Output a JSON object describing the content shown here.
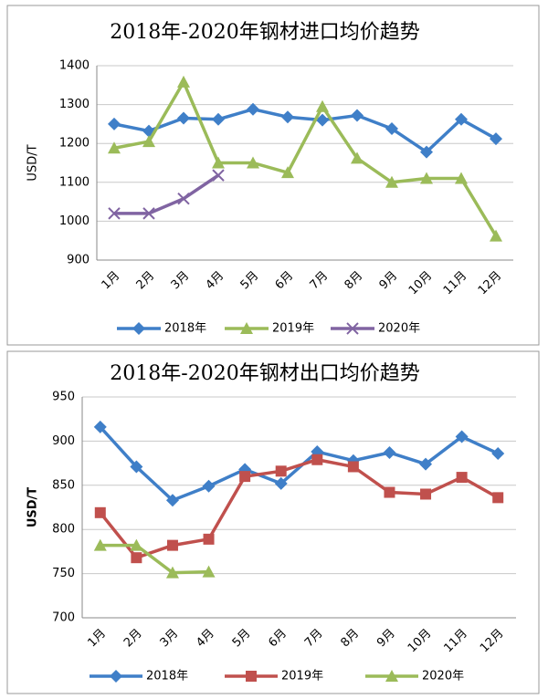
{
  "chart_data": [
    {
      "type": "line",
      "title": "2018年-2020年钢材进口均价趋势",
      "y_label": "USD/T",
      "categories": [
        "1月",
        "2月",
        "3月",
        "4月",
        "5月",
        "6月",
        "7月",
        "8月",
        "9月",
        "10月",
        "11月",
        "12月"
      ],
      "ylim": [
        900,
        1400
      ],
      "yticks": [
        900,
        1000,
        1100,
        1200,
        1300,
        1400
      ],
      "grid": true,
      "legend": "bottom",
      "series": [
        {
          "name": "2018年",
          "color": "#3f7fc8",
          "marker": "diamond",
          "values": [
            1250,
            1232,
            1265,
            1262,
            1288,
            1268,
            1260,
            1272,
            1238,
            1178,
            1262,
            1212
          ]
        },
        {
          "name": "2019年",
          "color": "#9bbb59",
          "marker": "triangle",
          "values": [
            1188,
            1205,
            1358,
            1150,
            1150,
            1125,
            1295,
            1162,
            1100,
            1110,
            1110,
            962
          ]
        },
        {
          "name": "2020年",
          "color": "#8064a2",
          "marker": "x",
          "values": [
            1020,
            1020,
            1058,
            1118,
            null,
            null,
            null,
            null,
            null,
            null,
            null,
            null
          ]
        }
      ]
    },
    {
      "type": "line",
      "title": "2018年-2020年钢材出口均价趋势",
      "y_label": "USD/T",
      "categories": [
        "1月",
        "2月",
        "3月",
        "4月",
        "5月",
        "6月",
        "7月",
        "8月",
        "9月",
        "10月",
        "11月",
        "12月"
      ],
      "ylim": [
        700,
        950
      ],
      "yticks": [
        700,
        750,
        800,
        850,
        900,
        950
      ],
      "grid": true,
      "legend": "bottom",
      "series": [
        {
          "name": "2018年",
          "color": "#3f7fc8",
          "marker": "diamond",
          "values": [
            916,
            871,
            833,
            849,
            868,
            852,
            888,
            878,
            887,
            874,
            905,
            886
          ]
        },
        {
          "name": "2019年",
          "color": "#c0504d",
          "marker": "square",
          "values": [
            819,
            768,
            782,
            789,
            860,
            866,
            879,
            871,
            842,
            840,
            859,
            836
          ]
        },
        {
          "name": "2020年",
          "color": "#9bbb59",
          "marker": "triangle",
          "values": [
            782,
            782,
            751,
            752,
            null,
            null,
            null,
            null,
            null,
            null,
            null,
            null
          ]
        }
      ]
    }
  ]
}
